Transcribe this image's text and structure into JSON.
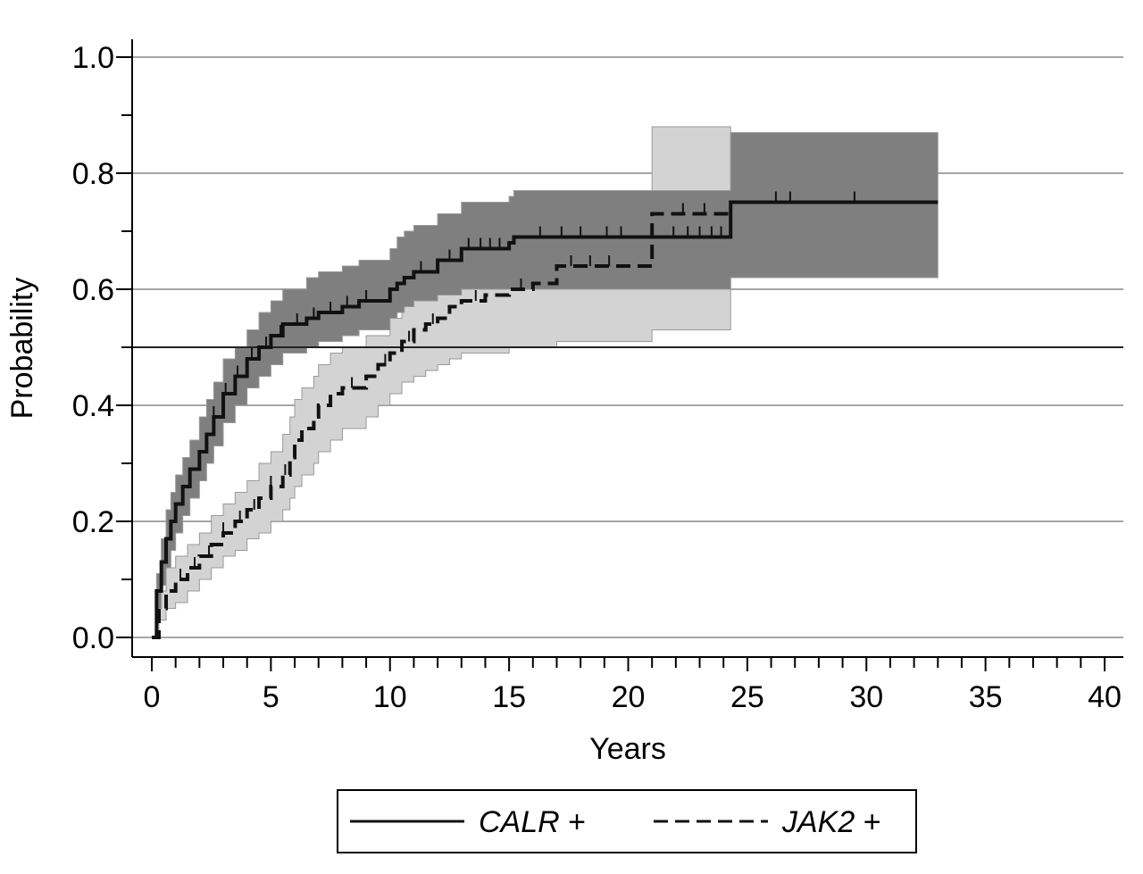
{
  "chart_data": {
    "type": "line",
    "subtype": "kaplan-meier cumulative incidence",
    "title": "",
    "xlabel": "Years",
    "ylabel": "Probability",
    "xlim": [
      0,
      40
    ],
    "ylim": [
      0,
      1.0
    ],
    "x_ticks": [
      0,
      5,
      10,
      15,
      20,
      25,
      30,
      35,
      40
    ],
    "x_tick_labels": [
      "0",
      "5",
      "10",
      "15",
      "20",
      "25",
      "30",
      "35",
      "40"
    ],
    "x_minor_step": 1,
    "y_ticks": [
      0.0,
      0.2,
      0.4,
      0.6,
      0.8,
      1.0
    ],
    "y_tick_labels": [
      "0.0",
      "0.2",
      "0.4",
      "0.6",
      "0.8",
      "1.0"
    ],
    "y_minor_step": 0.1,
    "grid": true,
    "reference_line_y": 0.5,
    "legend": {
      "placement": "bottom",
      "entries": [
        {
          "gene": "CALR",
          "suffix": " +",
          "style": "solid"
        },
        {
          "gene": "JAK2",
          "suffix": " +",
          "style": "dashed"
        }
      ]
    },
    "series": [
      {
        "name": "CALR +",
        "style": "solid",
        "color": "#111111",
        "band_color": "#7f7f7f",
        "steps": [
          [
            0,
            0
          ],
          [
            0.2,
            0.08
          ],
          [
            0.4,
            0.13
          ],
          [
            0.6,
            0.17
          ],
          [
            0.8,
            0.2
          ],
          [
            1.0,
            0.23
          ],
          [
            1.3,
            0.26
          ],
          [
            1.6,
            0.29
          ],
          [
            2.0,
            0.32
          ],
          [
            2.3,
            0.35
          ],
          [
            2.6,
            0.38
          ],
          [
            3.0,
            0.42
          ],
          [
            3.5,
            0.45
          ],
          [
            4.0,
            0.48
          ],
          [
            4.5,
            0.5
          ],
          [
            5.0,
            0.52
          ],
          [
            5.5,
            0.54
          ],
          [
            6.5,
            0.55
          ],
          [
            7.0,
            0.56
          ],
          [
            8.0,
            0.57
          ],
          [
            8.7,
            0.58
          ],
          [
            10.0,
            0.6
          ],
          [
            10.3,
            0.61
          ],
          [
            10.6,
            0.62
          ],
          [
            11.0,
            0.63
          ],
          [
            12.0,
            0.65
          ],
          [
            13.0,
            0.67
          ],
          [
            15.0,
            0.68
          ],
          [
            15.2,
            0.69
          ],
          [
            21.0,
            0.69
          ],
          [
            24.2,
            0.69
          ],
          [
            24.3,
            0.75
          ],
          [
            33.0,
            0.75
          ]
        ],
        "lower": [
          [
            0,
            0
          ],
          [
            0.2,
            0.05
          ],
          [
            0.4,
            0.09
          ],
          [
            0.6,
            0.12
          ],
          [
            0.8,
            0.15
          ],
          [
            1.0,
            0.18
          ],
          [
            1.3,
            0.21
          ],
          [
            1.6,
            0.24
          ],
          [
            2.0,
            0.27
          ],
          [
            2.3,
            0.3
          ],
          [
            2.6,
            0.33
          ],
          [
            3.0,
            0.37
          ],
          [
            3.5,
            0.4
          ],
          [
            4.0,
            0.43
          ],
          [
            4.5,
            0.45
          ],
          [
            5.0,
            0.47
          ],
          [
            5.5,
            0.49
          ],
          [
            6.5,
            0.5
          ],
          [
            7.0,
            0.51
          ],
          [
            8.0,
            0.52
          ],
          [
            8.7,
            0.53
          ],
          [
            10.0,
            0.55
          ],
          [
            10.3,
            0.56
          ],
          [
            10.6,
            0.57
          ],
          [
            11.0,
            0.58
          ],
          [
            12.0,
            0.59
          ],
          [
            13.0,
            0.6
          ],
          [
            15.0,
            0.6
          ],
          [
            24.3,
            0.62
          ],
          [
            33.0,
            0.62
          ]
        ],
        "upper": [
          [
            0,
            0
          ],
          [
            0.2,
            0.11
          ],
          [
            0.4,
            0.17
          ],
          [
            0.6,
            0.22
          ],
          [
            0.8,
            0.25
          ],
          [
            1.0,
            0.28
          ],
          [
            1.3,
            0.31
          ],
          [
            1.6,
            0.34
          ],
          [
            2.0,
            0.38
          ],
          [
            2.3,
            0.41
          ],
          [
            2.6,
            0.44
          ],
          [
            3.0,
            0.48
          ],
          [
            3.5,
            0.5
          ],
          [
            4.0,
            0.53
          ],
          [
            4.5,
            0.56
          ],
          [
            5.0,
            0.58
          ],
          [
            5.5,
            0.6
          ],
          [
            6.5,
            0.62
          ],
          [
            7.0,
            0.63
          ],
          [
            8.0,
            0.64
          ],
          [
            8.7,
            0.65
          ],
          [
            10.0,
            0.67
          ],
          [
            10.3,
            0.69
          ],
          [
            10.6,
            0.7
          ],
          [
            11.0,
            0.71
          ],
          [
            12.0,
            0.73
          ],
          [
            13.0,
            0.75
          ],
          [
            15.0,
            0.76
          ],
          [
            15.2,
            0.77
          ],
          [
            24.3,
            0.87
          ],
          [
            33.0,
            0.87
          ]
        ],
        "censor_x": [
          2.6,
          3.1,
          3.6,
          4.2,
          4.8,
          5.4,
          6.1,
          6.8,
          7.5,
          8.2,
          9.0,
          11.3,
          12.5,
          13.3,
          13.8,
          14.2,
          14.6,
          16.3,
          17.2,
          18.0,
          19.1,
          19.7,
          21.9,
          22.5,
          23.0,
          23.5,
          23.9,
          26.2,
          26.8,
          29.5
        ]
      },
      {
        "name": "JAK2 +",
        "style": "dashed",
        "color": "#111111",
        "band_color": "#d3d3d3",
        "steps": [
          [
            0,
            0
          ],
          [
            0.3,
            0.05
          ],
          [
            0.6,
            0.08
          ],
          [
            1.0,
            0.1
          ],
          [
            1.5,
            0.12
          ],
          [
            2.0,
            0.14
          ],
          [
            2.5,
            0.16
          ],
          [
            3.0,
            0.18
          ],
          [
            3.5,
            0.2
          ],
          [
            4.0,
            0.22
          ],
          [
            4.5,
            0.24
          ],
          [
            5.0,
            0.26
          ],
          [
            5.5,
            0.28
          ],
          [
            5.8,
            0.31
          ],
          [
            6.0,
            0.34
          ],
          [
            6.3,
            0.36
          ],
          [
            6.8,
            0.38
          ],
          [
            7.0,
            0.4
          ],
          [
            7.5,
            0.42
          ],
          [
            8.0,
            0.43
          ],
          [
            9.0,
            0.45
          ],
          [
            9.5,
            0.47
          ],
          [
            10.0,
            0.49
          ],
          [
            10.5,
            0.51
          ],
          [
            11.0,
            0.53
          ],
          [
            11.5,
            0.54
          ],
          [
            12.0,
            0.55
          ],
          [
            12.5,
            0.57
          ],
          [
            13.0,
            0.58
          ],
          [
            14.0,
            0.59
          ],
          [
            15.0,
            0.6
          ],
          [
            16.0,
            0.61
          ],
          [
            17.0,
            0.64
          ],
          [
            20.9,
            0.64
          ],
          [
            21.0,
            0.73
          ],
          [
            24.3,
            0.73
          ]
        ],
        "lower": [
          [
            0,
            0
          ],
          [
            0.3,
            0.03
          ],
          [
            0.6,
            0.05
          ],
          [
            1.0,
            0.06
          ],
          [
            1.5,
            0.08
          ],
          [
            2.0,
            0.1
          ],
          [
            2.5,
            0.12
          ],
          [
            3.0,
            0.14
          ],
          [
            3.5,
            0.15
          ],
          [
            4.0,
            0.17
          ],
          [
            4.5,
            0.18
          ],
          [
            5.0,
            0.2
          ],
          [
            5.5,
            0.22
          ],
          [
            5.8,
            0.24
          ],
          [
            6.0,
            0.26
          ],
          [
            6.3,
            0.28
          ],
          [
            6.8,
            0.3
          ],
          [
            7.0,
            0.32
          ],
          [
            7.5,
            0.34
          ],
          [
            8.0,
            0.36
          ],
          [
            9.0,
            0.38
          ],
          [
            9.5,
            0.4
          ],
          [
            10.0,
            0.42
          ],
          [
            10.5,
            0.44
          ],
          [
            11.0,
            0.45
          ],
          [
            11.5,
            0.46
          ],
          [
            12.0,
            0.47
          ],
          [
            12.5,
            0.48
          ],
          [
            13.0,
            0.49
          ],
          [
            15.0,
            0.5
          ],
          [
            17.0,
            0.51
          ],
          [
            21.0,
            0.53
          ],
          [
            24.3,
            0.55
          ]
        ],
        "upper": [
          [
            0,
            0
          ],
          [
            0.3,
            0.08
          ],
          [
            0.6,
            0.12
          ],
          [
            1.0,
            0.14
          ],
          [
            1.5,
            0.16
          ],
          [
            2.0,
            0.18
          ],
          [
            2.5,
            0.21
          ],
          [
            3.0,
            0.23
          ],
          [
            3.5,
            0.25
          ],
          [
            4.0,
            0.27
          ],
          [
            4.5,
            0.3
          ],
          [
            5.0,
            0.32
          ],
          [
            5.5,
            0.35
          ],
          [
            5.8,
            0.38
          ],
          [
            6.0,
            0.41
          ],
          [
            6.3,
            0.43
          ],
          [
            6.8,
            0.45
          ],
          [
            7.0,
            0.47
          ],
          [
            7.5,
            0.49
          ],
          [
            8.0,
            0.5
          ],
          [
            9.0,
            0.52
          ],
          [
            10.0,
            0.55
          ],
          [
            10.5,
            0.57
          ],
          [
            11.0,
            0.59
          ],
          [
            11.5,
            0.6
          ],
          [
            12.0,
            0.61
          ],
          [
            12.5,
            0.62
          ],
          [
            13.0,
            0.63
          ],
          [
            14.0,
            0.64
          ],
          [
            15.0,
            0.65
          ],
          [
            16.0,
            0.66
          ],
          [
            17.0,
            0.69
          ],
          [
            20.9,
            0.69
          ],
          [
            21.0,
            0.88
          ],
          [
            24.3,
            0.88
          ]
        ],
        "censor_x": [
          1.2,
          1.8,
          2.4,
          3.0,
          3.7,
          4.3,
          5.0,
          5.6,
          8.4,
          9.8,
          10.8,
          11.8,
          13.6,
          15.5,
          17.6,
          18.4,
          19.2,
          22.3,
          23.2
        ]
      }
    ]
  }
}
